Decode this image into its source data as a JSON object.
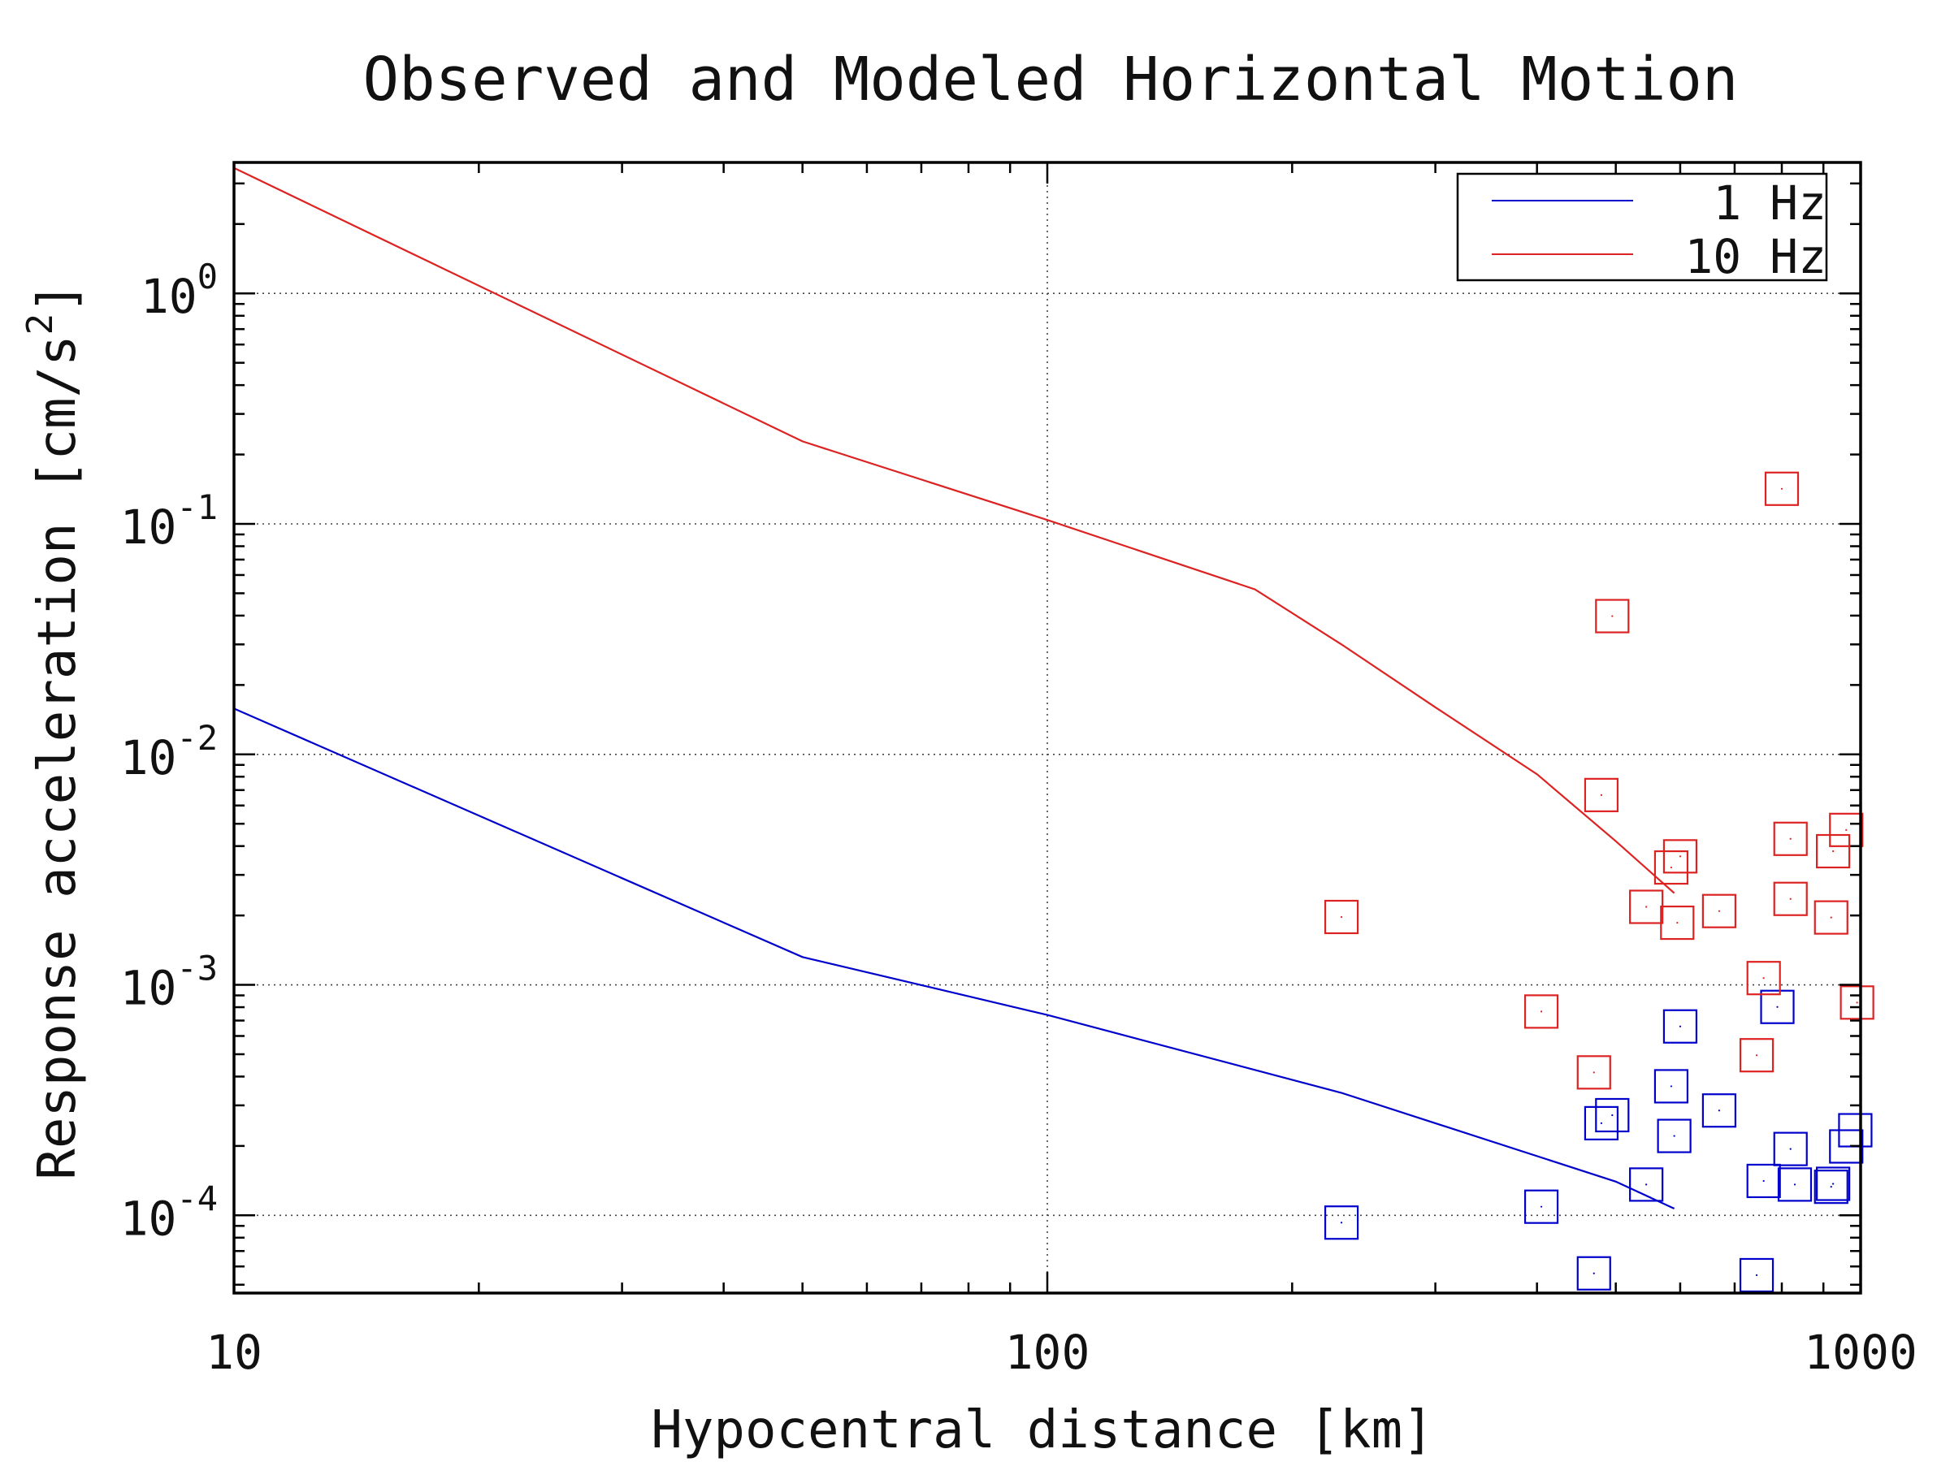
{
  "chart_data": {
    "type": "scatter",
    "title": "Observed and Modeled Horizontal Motion",
    "xlabel": "Hypocentral distance [km]",
    "ylabel": "Response acceleration [cm/s",
    "ylabel_sup": "2",
    "ylabel_end": "]",
    "xscale": "log",
    "yscale": "log",
    "xlim": [
      10,
      1000
    ],
    "ylim": [
      4.6e-05,
      3.7
    ],
    "x_ticks": [
      {
        "value": 10,
        "label": "10"
      },
      {
        "value": 100,
        "label": "100"
      },
      {
        "value": 1000,
        "label": "1000"
      }
    ],
    "y_ticks": [
      {
        "value": 1,
        "base": "10",
        "exp": "0"
      },
      {
        "value": 0.1,
        "base": "10",
        "exp": "-1"
      },
      {
        "value": 0.01,
        "base": "10",
        "exp": "-2"
      },
      {
        "value": 0.001,
        "base": "10",
        "exp": "-3"
      },
      {
        "value": 0.0001,
        "base": "10",
        "exp": "-4"
      }
    ],
    "grid": true,
    "legend_position": "top-right",
    "series": [
      {
        "name": "1 Hz",
        "color": "#0000cc",
        "line": [
          [
            10,
            0.0158
          ],
          [
            50,
            0.00132
          ],
          [
            100,
            0.00074
          ],
          [
            230,
            0.00034
          ],
          [
            500,
            0.00014
          ],
          [
            590,
            0.000107
          ]
        ],
        "points": [
          [
            230,
            9.3e-05
          ],
          [
            405,
            0.000109
          ],
          [
            470,
            5.6e-05
          ],
          [
            480,
            0.000251
          ],
          [
            495,
            0.000272
          ],
          [
            545,
            0.000136
          ],
          [
            585,
            0.000363
          ],
          [
            590,
            0.000221
          ],
          [
            600,
            0.00066
          ],
          [
            670,
            0.000285
          ],
          [
            745,
            5.5e-05
          ],
          [
            760,
            0.000141
          ],
          [
            790,
            0.000802
          ],
          [
            820,
            0.000194
          ],
          [
            830,
            0.000136
          ],
          [
            920,
            0.000133
          ],
          [
            925,
            0.000137
          ],
          [
            960,
            0.000199
          ],
          [
            985,
            0.000234
          ]
        ]
      },
      {
        "name": "10 Hz",
        "color": "#dd2222",
        "line": [
          [
            10,
            3.5
          ],
          [
            50,
            0.228
          ],
          [
            100,
            0.104
          ],
          [
            180,
            0.052
          ],
          [
            230,
            0.03
          ],
          [
            300,
            0.016
          ],
          [
            400,
            0.0082
          ],
          [
            500,
            0.0042
          ],
          [
            590,
            0.0025
          ]
        ],
        "points": [
          [
            230,
            0.00197
          ],
          [
            405,
            0.000766
          ],
          [
            470,
            0.000417
          ],
          [
            480,
            0.00666
          ],
          [
            495,
            0.0398
          ],
          [
            545,
            0.00218
          ],
          [
            585,
            0.00323
          ],
          [
            595,
            0.00186
          ],
          [
            600,
            0.00361
          ],
          [
            670,
            0.00209
          ],
          [
            745,
            0.000495
          ],
          [
            760,
            0.00107
          ],
          [
            800,
            0.142
          ],
          [
            820,
            0.0043
          ],
          [
            820,
            0.00236
          ],
          [
            920,
            0.00196
          ],
          [
            925,
            0.0038
          ],
          [
            960,
            0.0047
          ],
          [
            990,
            0.000838
          ]
        ]
      }
    ]
  }
}
